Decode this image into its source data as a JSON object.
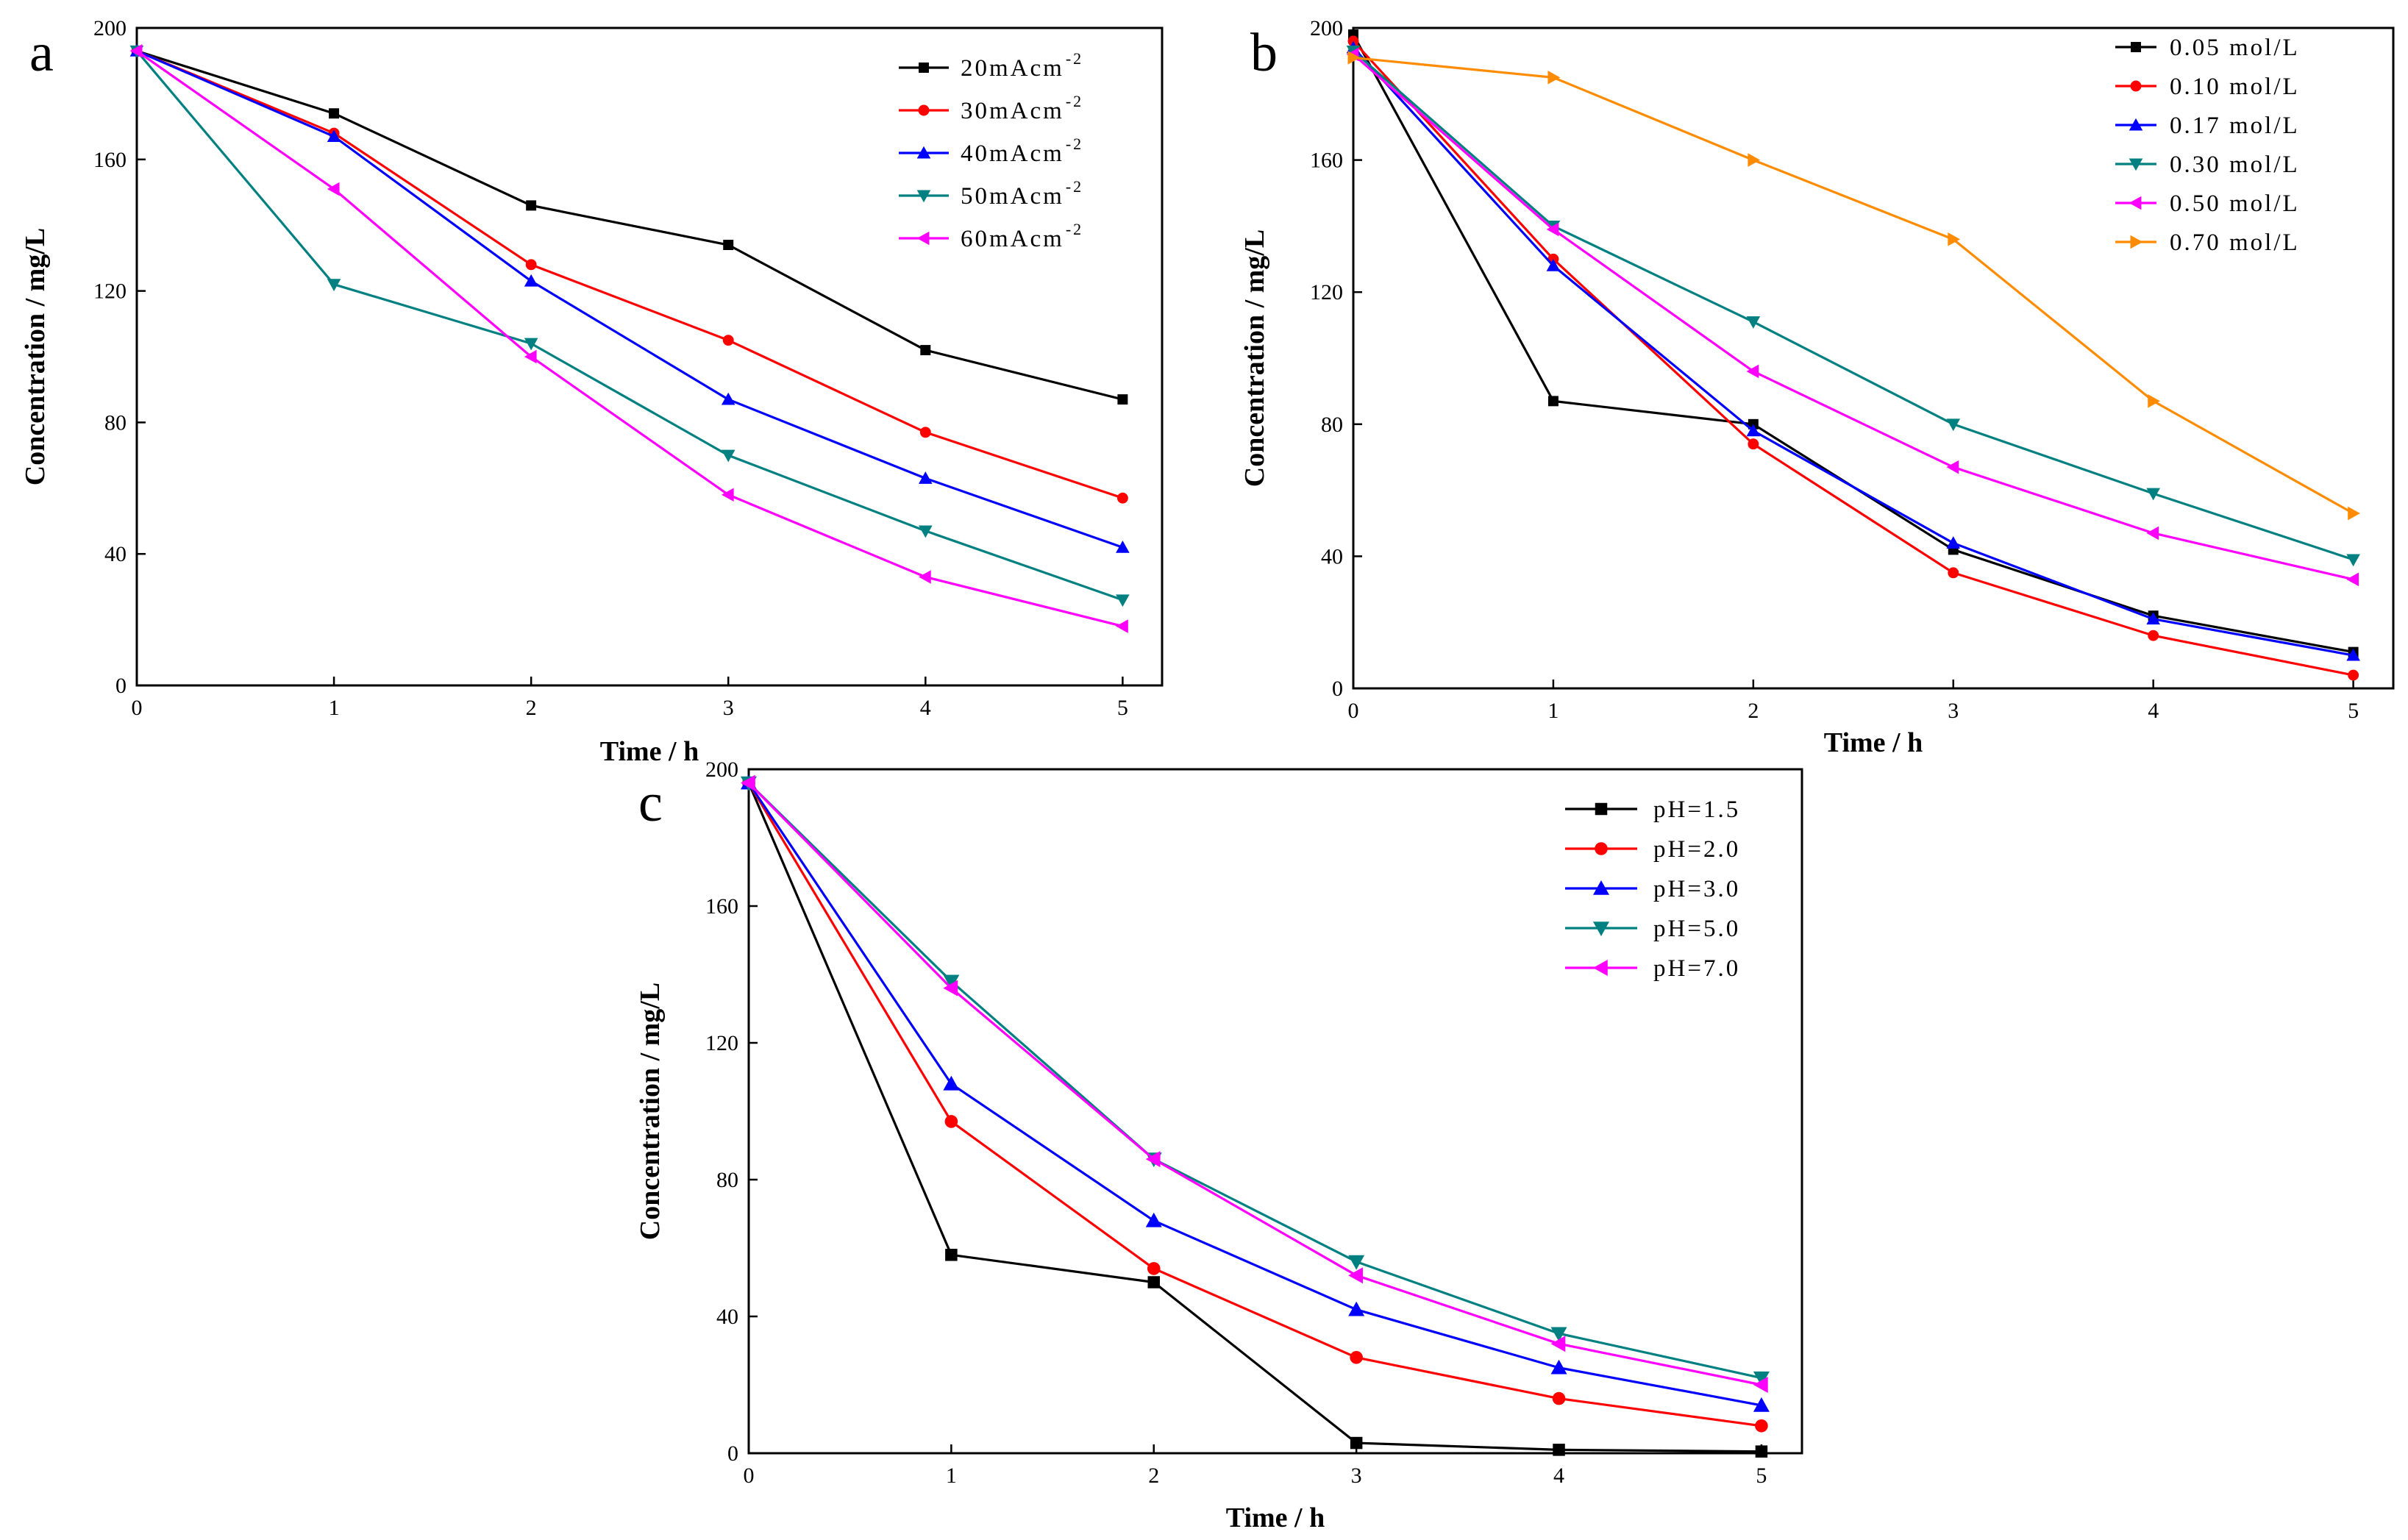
{
  "chart_data": [
    {
      "type": "line",
      "panel_label": "a",
      "xlabel": "Time / h",
      "ylabel": "Concentration / mg/L",
      "xlim": [
        0,
        5.2
      ],
      "ylim": [
        0,
        200
      ],
      "xticks": [
        0,
        1,
        2,
        3,
        4,
        5
      ],
      "yticks": [
        0,
        40,
        80,
        120,
        160,
        200
      ],
      "legend_position": "top-right",
      "x": [
        0,
        1,
        2,
        3,
        4,
        5
      ],
      "series": [
        {
          "name": "20mAcm",
          "sup": "-2",
          "color": "#000000",
          "marker": "square",
          "values": [
            193,
            174,
            146,
            134,
            102,
            87
          ]
        },
        {
          "name": "30mAcm",
          "sup": "-2",
          "color": "#ff0000",
          "marker": "circle",
          "values": [
            193,
            168,
            128,
            105,
            77,
            57
          ]
        },
        {
          "name": "40mAcm",
          "sup": "-2",
          "color": "#0000ff",
          "marker": "triangle-up",
          "values": [
            193,
            167,
            123,
            87,
            63,
            42
          ]
        },
        {
          "name": "50mAcm",
          "sup": "-2",
          "color": "#008080",
          "marker": "triangle-down",
          "values": [
            193,
            122,
            104,
            70,
            47,
            26
          ]
        },
        {
          "name": "60mAcm",
          "sup": "-2",
          "color": "#ff00ff",
          "marker": "triangle-left",
          "values": [
            193,
            151,
            100,
            58,
            33,
            18
          ]
        }
      ]
    },
    {
      "type": "line",
      "panel_label": "b",
      "xlabel": "Time / h",
      "ylabel": "Concentration / mg/L",
      "xlim": [
        0,
        5.2
      ],
      "ylim": [
        0,
        200
      ],
      "xticks": [
        0,
        1,
        2,
        3,
        4,
        5
      ],
      "yticks": [
        0,
        40,
        80,
        120,
        160,
        200
      ],
      "legend_position": "top-right",
      "x": [
        0,
        1,
        2,
        3,
        4,
        5
      ],
      "series": [
        {
          "name": "0.05 mol/L",
          "color": "#000000",
          "marker": "square",
          "values": [
            198,
            87,
            80,
            42,
            22,
            11
          ]
        },
        {
          "name": "0.10 mol/L",
          "color": "#ff0000",
          "marker": "circle",
          "values": [
            196,
            130,
            74,
            35,
            16,
            4
          ]
        },
        {
          "name": "0.17 mol/L",
          "color": "#0000ff",
          "marker": "triangle-up",
          "values": [
            194,
            128,
            78,
            44,
            21,
            10
          ]
        },
        {
          "name": "0.30 mol/L",
          "color": "#008080",
          "marker": "triangle-down",
          "values": [
            193,
            140,
            111,
            80,
            59,
            39
          ]
        },
        {
          "name": "0.50 mol/L",
          "color": "#ff00ff",
          "marker": "triangle-left",
          "values": [
            192,
            139,
            96,
            67,
            47,
            33
          ]
        },
        {
          "name": "0.70 mol/L",
          "color": "#ff8c00",
          "marker": "triangle-right",
          "values": [
            191,
            185,
            160,
            136,
            87,
            53
          ]
        }
      ]
    },
    {
      "type": "line",
      "panel_label": "c",
      "xlabel": "Time / h",
      "ylabel": "Concentration / mg/L",
      "xlim": [
        0,
        5.2
      ],
      "ylim": [
        0,
        200
      ],
      "xticks": [
        0,
        1,
        2,
        3,
        4,
        5
      ],
      "yticks": [
        0,
        40,
        80,
        120,
        160,
        200
      ],
      "legend_position": "top-right",
      "x": [
        0,
        1,
        2,
        3,
        4,
        5
      ],
      "series": [
        {
          "name": "pH=1.5",
          "color": "#000000",
          "marker": "square",
          "values": [
            196,
            58,
            50,
            3,
            1,
            0.5
          ]
        },
        {
          "name": "pH=2.0",
          "color": "#ff0000",
          "marker": "circle",
          "values": [
            196,
            97,
            54,
            28,
            16,
            8
          ]
        },
        {
          "name": "pH=3.0",
          "color": "#0000ff",
          "marker": "triangle-up",
          "values": [
            196,
            108,
            68,
            42,
            25,
            14
          ]
        },
        {
          "name": "pH=5.0",
          "color": "#008080",
          "marker": "triangle-down",
          "values": [
            196,
            138,
            86,
            56,
            35,
            22
          ]
        },
        {
          "name": "pH=7.0",
          "color": "#ff00ff",
          "marker": "triangle-left",
          "values": [
            196,
            136,
            86,
            52,
            32,
            20
          ]
        }
      ]
    }
  ]
}
